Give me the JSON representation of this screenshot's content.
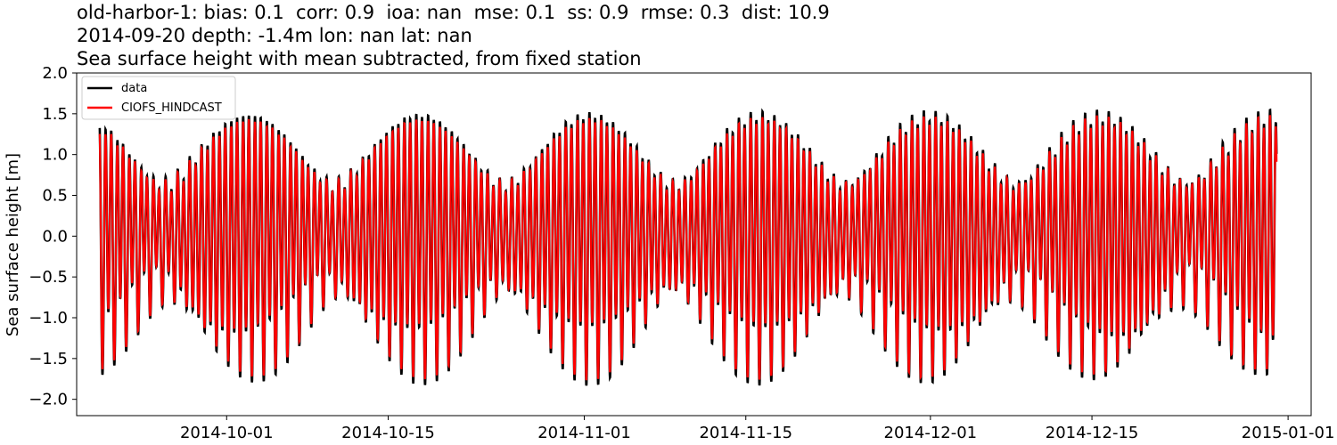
{
  "chart_data": {
    "type": "line",
    "title_lines": [
      "old-harbor-1: bias: 0.1  corr: 0.9  ioa: nan  mse: 0.1  ss: 0.9  rmse: 0.3  dist: 10.9",
      "2014-09-20 depth: -1.4m lon: nan lat: nan",
      "Sea surface height with mean subtracted, from fixed station"
    ],
    "ylabel": "Sea surface height [m]",
    "xlabel": "",
    "xlim": [
      "2014-09-18",
      "2015-01-03"
    ],
    "ylim": [
      -2.2,
      2.0
    ],
    "x_range_data": [
      "2014-09-20",
      "2014-12-31"
    ],
    "x_ticks": [
      "2014-10-01",
      "2014-10-15",
      "2014-11-01",
      "2014-11-15",
      "2014-12-01",
      "2014-12-15",
      "2015-01-01"
    ],
    "y_ticks": [
      "2.0",
      "1.5",
      "1.0",
      "0.5",
      "0.0",
      "−0.5",
      "−1.0",
      "−1.5",
      "−2.0"
    ],
    "y_tick_values": [
      2.0,
      1.5,
      1.0,
      0.5,
      0.0,
      -0.5,
      -1.0,
      -1.5,
      -2.0
    ],
    "grid": false,
    "legend": {
      "position": "top-left",
      "entries": [
        "data",
        "CIOFS_HINDCAST"
      ]
    },
    "series": [
      {
        "name": "data",
        "color": "#000000",
        "description_peaks": {
          "max": 1.83,
          "min": -2.0
        }
      },
      {
        "name": "CIOFS_HINDCAST",
        "color": "#ff0000",
        "description_peaks": {
          "max": 1.73,
          "min": -2.0
        }
      }
    ]
  }
}
